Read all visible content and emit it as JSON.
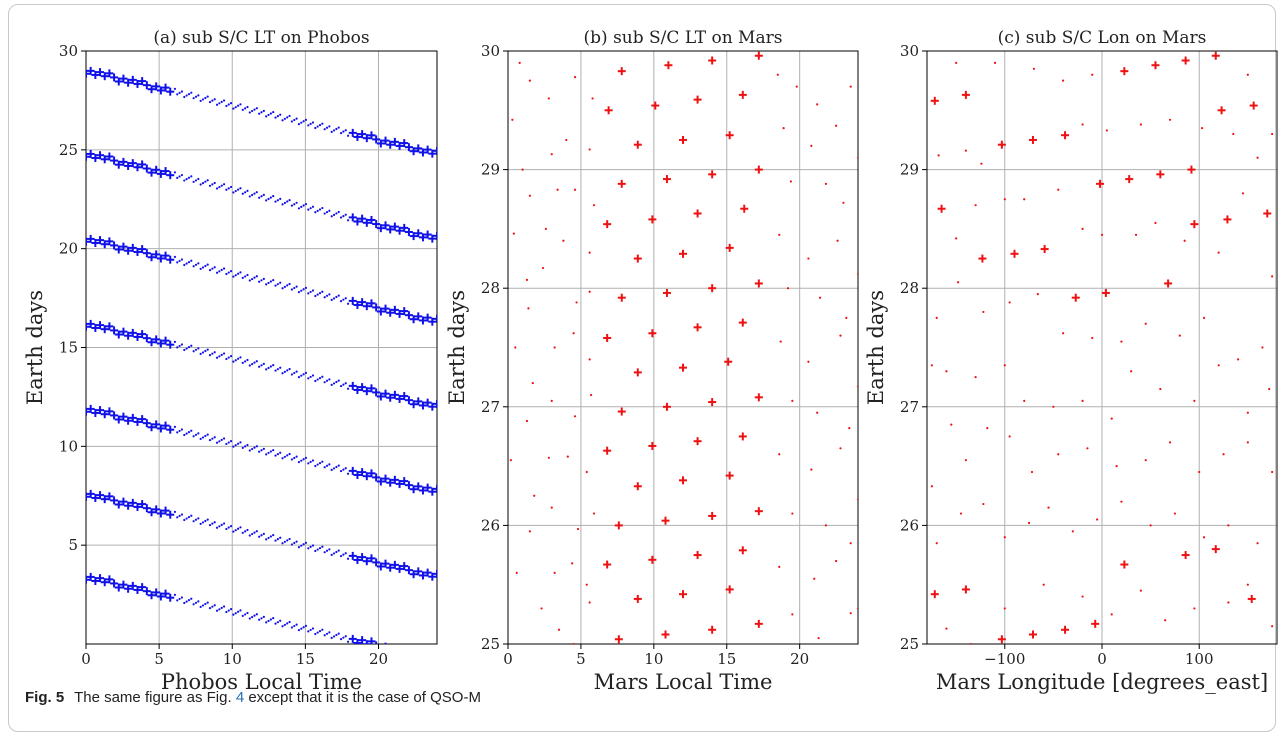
{
  "caption": {
    "label": "Fig. 5",
    "text_before": "The same figure as Fig.",
    "ref": "4",
    "text_after": "except that it is the case of QSO-M"
  },
  "colors": {
    "panel_a": "#1010e8",
    "panel_bc": "#ee1111",
    "grid": "#b0b0b0"
  },
  "chart_data": [
    {
      "type": "scatter",
      "title": "(a) sub S/C LT on Phobos",
      "xlabel": "Phobos Local Time",
      "ylabel": "Earth days",
      "xlim": [
        0,
        24
      ],
      "ylim": [
        0,
        30
      ],
      "xticks": [
        0,
        5,
        10,
        15,
        20
      ],
      "yticks": [
        5,
        10,
        15,
        20,
        25,
        30
      ],
      "grid": true,
      "color": "#1010e8",
      "tracks": [
        {
          "x_start": 0,
          "y_start": 29.0,
          "x_end": 24,
          "y_end": 24.8,
          "marker_cross_until_x": 6,
          "marker_cross_from_x": 18
        },
        {
          "x_start": 0,
          "y_start": 24.8,
          "x_end": 24,
          "y_end": 20.5,
          "marker_cross_until_x": 6,
          "marker_cross_from_x": 18
        },
        {
          "x_start": 0,
          "y_start": 20.5,
          "x_end": 24,
          "y_end": 16.3,
          "marker_cross_until_x": 6,
          "marker_cross_from_x": 18
        },
        {
          "x_start": 0,
          "y_start": 16.2,
          "x_end": 24,
          "y_end": 12.0,
          "marker_cross_until_x": 6,
          "marker_cross_from_x": 18
        },
        {
          "x_start": 0,
          "y_start": 11.9,
          "x_end": 24,
          "y_end": 7.7,
          "marker_cross_until_x": 6,
          "marker_cross_from_x": 18
        },
        {
          "x_start": 0,
          "y_start": 7.6,
          "x_end": 24,
          "y_end": 3.4,
          "marker_cross_until_x": 6,
          "marker_cross_from_x": 18
        },
        {
          "x_start": 0,
          "y_start": 3.4,
          "x_end": 24,
          "y_end": -0.8,
          "marker_cross_until_x": 6,
          "marker_cross_from_x": 18
        }
      ]
    },
    {
      "type": "scatter",
      "title": "(b) sub S/C LT on Mars",
      "xlabel": "Mars Local Time",
      "ylabel": "Earth days",
      "xlim": [
        0,
        24
      ],
      "ylim": [
        25,
        30
      ],
      "xticks": [
        0,
        5,
        10,
        15,
        20
      ],
      "yticks": [
        25,
        26,
        27,
        28,
        29,
        30
      ],
      "grid": true,
      "color": "#ee1111",
      "crosses": [
        [
          7.8,
          29.83
        ],
        [
          11,
          29.88
        ],
        [
          14,
          29.92
        ],
        [
          17.2,
          29.96
        ],
        [
          6.9,
          29.5
        ],
        [
          10.1,
          29.54
        ],
        [
          13,
          29.59
        ],
        [
          16.1,
          29.63
        ],
        [
          8.9,
          29.21
        ],
        [
          12,
          29.25
        ],
        [
          15.2,
          29.29
        ],
        [
          7.8,
          28.88
        ],
        [
          10.9,
          28.92
        ],
        [
          14,
          28.96
        ],
        [
          17.2,
          29.0
        ],
        [
          6.8,
          28.54
        ],
        [
          9.9,
          28.58
        ],
        [
          13,
          28.63
        ],
        [
          16.2,
          28.67
        ],
        [
          8.9,
          28.25
        ],
        [
          12,
          28.29
        ],
        [
          15.2,
          28.34
        ],
        [
          7.8,
          27.92
        ],
        [
          10.9,
          27.96
        ],
        [
          14,
          28.0
        ],
        [
          17.2,
          28.04
        ],
        [
          6.8,
          27.58
        ],
        [
          9.9,
          27.62
        ],
        [
          13,
          27.67
        ],
        [
          16.1,
          27.71
        ],
        [
          8.9,
          27.29
        ],
        [
          12,
          27.33
        ],
        [
          15.1,
          27.38
        ],
        [
          7.8,
          26.96
        ],
        [
          10.9,
          27.0
        ],
        [
          14,
          27.04
        ],
        [
          17.2,
          27.08
        ],
        [
          6.8,
          26.63
        ],
        [
          9.9,
          26.67
        ],
        [
          13,
          26.71
        ],
        [
          16.1,
          26.75
        ],
        [
          8.9,
          26.33
        ],
        [
          12,
          26.38
        ],
        [
          15.2,
          26.42
        ],
        [
          7.6,
          26.0
        ],
        [
          10.8,
          26.04
        ],
        [
          14,
          26.08
        ],
        [
          17.2,
          26.12
        ],
        [
          6.8,
          25.67
        ],
        [
          9.9,
          25.71
        ],
        [
          13,
          25.75
        ],
        [
          16.1,
          25.79
        ],
        [
          8.9,
          25.38
        ],
        [
          12,
          25.42
        ],
        [
          15.2,
          25.46
        ],
        [
          7.6,
          25.04
        ],
        [
          10.8,
          25.08
        ],
        [
          14,
          25.12
        ],
        [
          17.2,
          25.17
        ]
      ],
      "dots": [
        [
          0.8,
          29.9
        ],
        [
          1.5,
          29.75
        ],
        [
          2.8,
          29.6
        ],
        [
          4.6,
          29.78
        ],
        [
          5.8,
          29.6
        ],
        [
          18.5,
          29.8
        ],
        [
          19.8,
          29.7
        ],
        [
          21.2,
          29.55
        ],
        [
          23.5,
          29.7
        ],
        [
          0.3,
          29.42
        ],
        [
          3.0,
          29.13
        ],
        [
          4.0,
          29.25
        ],
        [
          5.6,
          29.17
        ],
        [
          18.9,
          29.35
        ],
        [
          20.8,
          29.2
        ],
        [
          22.5,
          29.37
        ],
        [
          24,
          29.1
        ],
        [
          1.0,
          29.0
        ],
        [
          1.5,
          28.78
        ],
        [
          3.4,
          28.83
        ],
        [
          4.6,
          28.83
        ],
        [
          5.9,
          28.7
        ],
        [
          19.4,
          28.9
        ],
        [
          21.8,
          28.88
        ],
        [
          23,
          28.72
        ],
        [
          0.4,
          28.46
        ],
        [
          2.6,
          28.5
        ],
        [
          3.8,
          28.4
        ],
        [
          5.6,
          28.3
        ],
        [
          18.6,
          28.45
        ],
        [
          20.6,
          28.25
        ],
        [
          22.6,
          28.4
        ],
        [
          24,
          28.12
        ],
        [
          1.3,
          28.07
        ],
        [
          2.4,
          28.17
        ],
        [
          4.7,
          27.88
        ],
        [
          5.6,
          27.97
        ],
        [
          19.2,
          28.0
        ],
        [
          21.4,
          27.92
        ],
        [
          23.2,
          27.75
        ],
        [
          0.5,
          27.5
        ],
        [
          1.4,
          27.83
        ],
        [
          3.2,
          27.5
        ],
        [
          4.5,
          27.62
        ],
        [
          5.6,
          27.4
        ],
        [
          18.7,
          27.55
        ],
        [
          20.6,
          27.38
        ],
        [
          22.8,
          27.6
        ],
        [
          24,
          27.17
        ],
        [
          1.7,
          27.2
        ],
        [
          3.0,
          27.05
        ],
        [
          4.6,
          26.92
        ],
        [
          5.7,
          27.1
        ],
        [
          19.5,
          27.05
        ],
        [
          21.2,
          26.95
        ],
        [
          23.4,
          26.82
        ],
        [
          0.2,
          26.55
        ],
        [
          1.3,
          26.88
        ],
        [
          2.8,
          26.57
        ],
        [
          4.1,
          26.58
        ],
        [
          5.4,
          26.45
        ],
        [
          18.6,
          26.6
        ],
        [
          20.8,
          26.47
        ],
        [
          22.8,
          26.65
        ],
        [
          24,
          26.22
        ],
        [
          1.8,
          26.25
        ],
        [
          3.0,
          26.15
        ],
        [
          4.8,
          25.97
        ],
        [
          5.9,
          26.1
        ],
        [
          19.5,
          26.1
        ],
        [
          21.8,
          26.0
        ],
        [
          23.5,
          25.85
        ],
        [
          0.6,
          25.6
        ],
        [
          1.5,
          25.95
        ],
        [
          3.2,
          25.6
        ],
        [
          4.4,
          25.68
        ],
        [
          5.4,
          25.5
        ],
        [
          18.6,
          25.65
        ],
        [
          21.0,
          25.55
        ],
        [
          22.5,
          25.7
        ],
        [
          24,
          25.3
        ],
        [
          2.3,
          25.3
        ],
        [
          3.5,
          25.12
        ],
        [
          4.5,
          25.0
        ],
        [
          5.6,
          25.35
        ],
        [
          19.5,
          25.25
        ],
        [
          21.3,
          25.05
        ],
        [
          23.5,
          25.26
        ]
      ]
    },
    {
      "type": "scatter",
      "title": "(c) sub S/C Lon on Mars",
      "xlabel": "Mars Longitude [degrees_east]",
      "ylabel": "Earth days",
      "xlim": [
        -180,
        180
      ],
      "ylim": [
        25,
        30
      ],
      "xticks": [
        -100,
        0,
        100
      ],
      "yticks": [
        25,
        26,
        27,
        28,
        29,
        30
      ],
      "grid": true,
      "color": "#ee1111",
      "crosses": [
        [
          -172,
          29.58
        ],
        [
          -140,
          29.63
        ],
        [
          -103,
          29.21
        ],
        [
          -71,
          29.25
        ],
        [
          -38,
          29.29
        ],
        [
          23,
          29.83
        ],
        [
          55,
          29.88
        ],
        [
          86,
          29.92
        ],
        [
          117,
          29.96
        ],
        [
          -2,
          28.88
        ],
        [
          28,
          28.92
        ],
        [
          60,
          28.96
        ],
        [
          92,
          29.0
        ],
        [
          -165,
          28.67
        ],
        [
          123,
          29.5
        ],
        [
          156,
          29.54
        ],
        [
          -123,
          28.25
        ],
        [
          -90,
          28.29
        ],
        [
          -59,
          28.33
        ],
        [
          -27,
          27.92
        ],
        [
          4,
          27.96
        ],
        [
          68,
          28.04
        ],
        [
          95,
          28.54
        ],
        [
          129,
          28.58
        ],
        [
          170,
          28.63
        ],
        [
          -172,
          25.42
        ],
        [
          -140,
          25.46
        ],
        [
          -103,
          25.04
        ],
        [
          -71,
          25.08
        ],
        [
          -38,
          25.12
        ],
        [
          -7,
          25.17
        ],
        [
          23,
          25.67
        ],
        [
          86,
          25.75
        ],
        [
          117,
          25.8
        ],
        [
          154,
          25.38
        ]
      ],
      "dots": [
        [
          -150,
          29.9
        ],
        [
          -110,
          29.9
        ],
        [
          -70,
          29.85
        ],
        [
          -40,
          29.75
        ],
        [
          -10,
          29.8
        ],
        [
          150,
          29.8
        ],
        [
          -168,
          29.12
        ],
        [
          -140,
          29.16
        ],
        [
          -124,
          29.05
        ],
        [
          -80,
          28.75
        ],
        [
          -45,
          28.83
        ],
        [
          -20,
          29.38
        ],
        [
          5,
          29.33
        ],
        [
          40,
          29.38
        ],
        [
          70,
          29.42
        ],
        [
          103,
          29.35
        ],
        [
          135,
          29.3
        ],
        [
          160,
          29.1
        ],
        [
          175,
          29.3
        ],
        [
          -150,
          28.42
        ],
        [
          -130,
          28.7
        ],
        [
          -100,
          28.75
        ],
        [
          -20,
          28.5
        ],
        [
          0,
          28.45
        ],
        [
          35,
          28.45
        ],
        [
          55,
          28.55
        ],
        [
          85,
          28.4
        ],
        [
          120,
          28.3
        ],
        [
          145,
          28.8
        ],
        [
          175,
          28.1
        ],
        [
          -170,
          27.75
        ],
        [
          -148,
          28.05
        ],
        [
          -122,
          27.8
        ],
        [
          -95,
          27.88
        ],
        [
          -66,
          27.95
        ],
        [
          -40,
          27.62
        ],
        [
          -10,
          27.58
        ],
        [
          20,
          27.55
        ],
        [
          45,
          27.7
        ],
        [
          80,
          27.6
        ],
        [
          105,
          27.75
        ],
        [
          140,
          27.4
        ],
        [
          165,
          27.5
        ],
        [
          -175,
          27.35
        ],
        [
          -160,
          27.3
        ],
        [
          -130,
          27.25
        ],
        [
          -100,
          27.35
        ],
        [
          -80,
          27.05
        ],
        [
          -50,
          27.0
        ],
        [
          -20,
          27.05
        ],
        [
          10,
          26.9
        ],
        [
          30,
          27.3
        ],
        [
          60,
          27.15
        ],
        [
          95,
          27.05
        ],
        [
          120,
          27.35
        ],
        [
          150,
          26.95
        ],
        [
          172,
          27.15
        ],
        [
          -175,
          26.33
        ],
        [
          -155,
          26.85
        ],
        [
          -140,
          26.55
        ],
        [
          -118,
          26.82
        ],
        [
          -95,
          26.75
        ],
        [
          -72,
          26.45
        ],
        [
          -45,
          26.6
        ],
        [
          -15,
          26.65
        ],
        [
          15,
          26.5
        ],
        [
          45,
          26.55
        ],
        [
          70,
          26.7
        ],
        [
          100,
          26.45
        ],
        [
          125,
          26.6
        ],
        [
          150,
          26.7
        ],
        [
          175,
          26.45
        ],
        [
          -170,
          25.85
        ],
        [
          -145,
          26.1
        ],
        [
          -122,
          26.18
        ],
        [
          -100,
          25.9
        ],
        [
          -75,
          26.02
        ],
        [
          -55,
          26.15
        ],
        [
          -30,
          25.95
        ],
        [
          -5,
          26.05
        ],
        [
          20,
          26.2
        ],
        [
          50,
          26.0
        ],
        [
          75,
          26.1
        ],
        [
          105,
          25.9
        ],
        [
          130,
          26.0
        ],
        [
          160,
          25.85
        ],
        [
          -160,
          25.13
        ],
        [
          -135,
          25.0
        ],
        [
          -100,
          25.3
        ],
        [
          -60,
          25.5
        ],
        [
          -20,
          25.4
        ],
        [
          10,
          25.25
        ],
        [
          40,
          25.45
        ],
        [
          65,
          25.2
        ],
        [
          95,
          25.3
        ],
        [
          130,
          25.35
        ],
        [
          150,
          25.5
        ],
        [
          175,
          25.15
        ]
      ]
    }
  ]
}
